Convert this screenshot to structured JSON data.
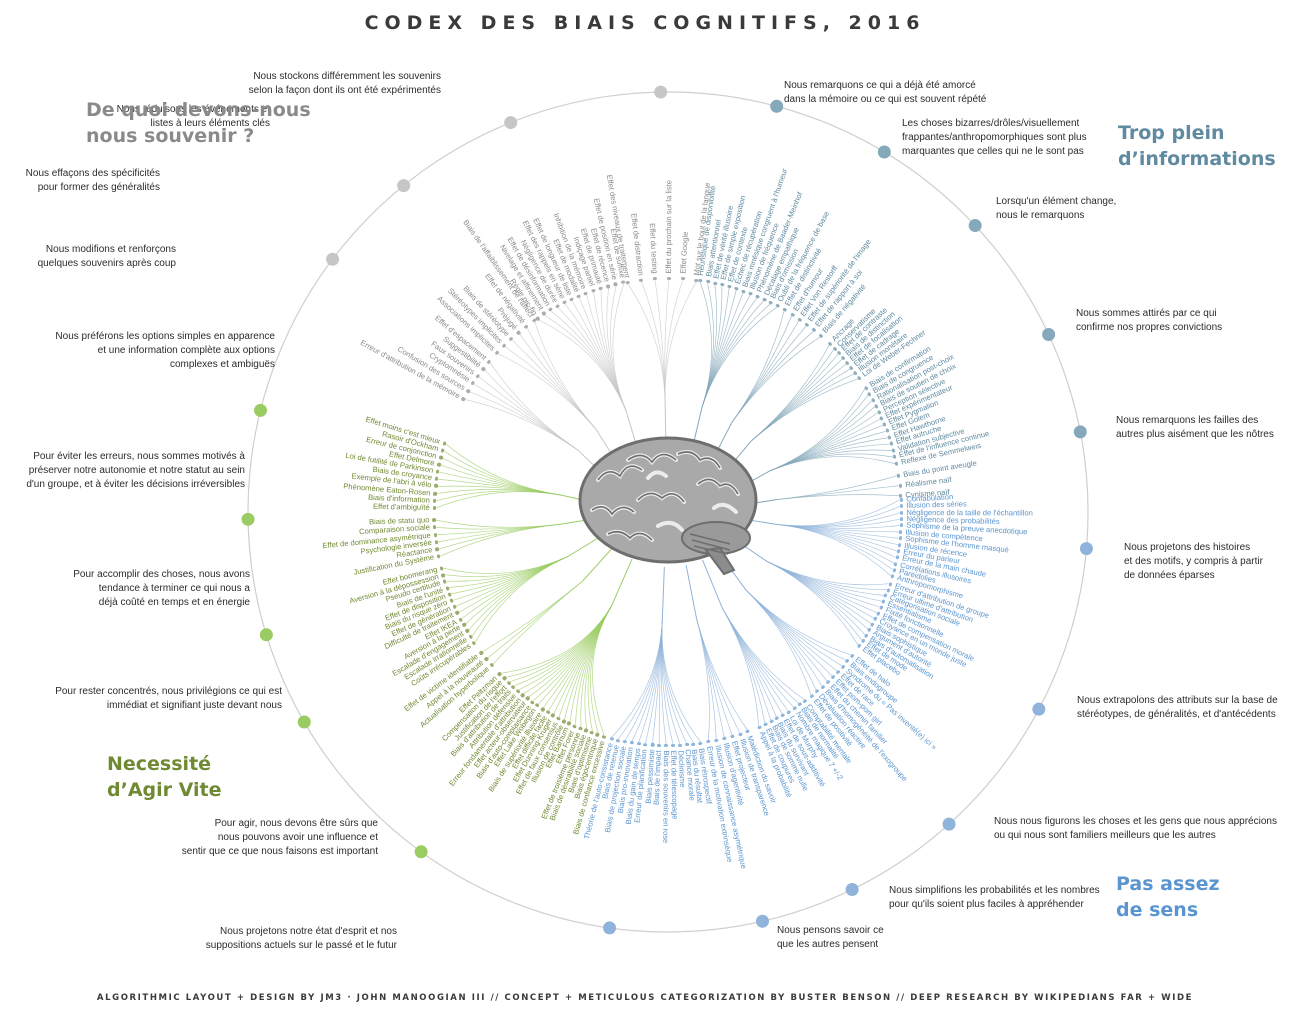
{
  "title": "CODEX DES BIAIS COGNITIFS, 2016",
  "footer": "ALGORITHMIC LAYOUT + DESIGN BY JM3 · JOHN MANOOGIAN III // CONCEPT + METICULOUS CATEGORIZATION BY BUSTER BENSON // DEEP RESEARCH BY WIKIPEDIANS FAR + WIDE",
  "center_icon": "brain-icon",
  "colors": {
    "memory": "#8a8a8a",
    "memory_dot": "#c6c6c6",
    "information": "#5f8aa0",
    "information_dot": "#86a8bb",
    "meaning": "#5b95cf",
    "meaning_dot": "#8fb3da",
    "action": "#6f8a32",
    "action_dot": "#9bcc63",
    "ring": "#cfcfcf"
  },
  "quadrants": {
    "memory": {
      "line1": "De quoi devons-nous",
      "line2": "nous souvenir ?"
    },
    "information": {
      "line1": "Trop plein",
      "line2": "d’informations"
    },
    "meaning": {
      "line1": "Pas assez",
      "line2": "de sens"
    },
    "action": {
      "line1": "Necessité",
      "line2": "d’Agir Vite"
    }
  },
  "categories": [
    {
      "id": "mem_store",
      "quadrant": "memory",
      "text": [
        "Nous stockons différemment les souvenirs",
        "selon la façon dont ils ont été expérimentés"
      ],
      "biases": [
        "Effet des niveaux de traitement",
        "Effet de distraction",
        "Effet du testing",
        "Effet du prochain sur la liste",
        "Effet Google",
        "Mot sur le bout de la langue"
      ]
    },
    {
      "id": "mem_reduce",
      "quadrant": "memory",
      "text": [
        "Nous réduisons les événements et",
        "listes à leurs éléments clés"
      ],
      "biases": [
        "Règle pic-fin",
        "Nivelage et affinement",
        "Effet de désinformation",
        "Négligence de durée",
        "Effet des rappels en série",
        "Effet de longueur de liste",
        "Effet de modalité",
        "Inhibition de la mémoire",
        "Indiçage partiel",
        "Effet de primauté",
        "Effet de récence",
        "Effet de position en série",
        "Effet de suffixe"
      ]
    },
    {
      "id": "mem_generalize",
      "quadrant": "memory",
      "text": [
        "Nous effaçons des spécificités",
        "pour former des généralités"
      ],
      "biases": [
        "Associations implicites",
        "Stéréotypes implicites",
        "Biais de stéréotype",
        "Préjugé",
        "Effet de négativité",
        "Biais de l'affaiblissement de l'affect"
      ]
    },
    {
      "id": "mem_edit",
      "quadrant": "memory",
      "text": [
        "Nous modifions et renforçons",
        "quelques souvenirs après coup"
      ],
      "biases": [
        "Erreur d'attribution de la mémoire",
        "Confusion des sources",
        "Cryptomnésie",
        "Faux souvenirs",
        "Suggestibilité",
        "Effet d'espacement"
      ]
    },
    {
      "id": "info_primed",
      "quadrant": "information",
      "text": [
        "Nous remarquons ce qui a déjà été amorcé",
        "dans la mémoire ou ce qui est souvent répété"
      ],
      "biases": [
        "Heuristique de disponibilité",
        "Biais attentionnel",
        "Effet de vérité illusoire",
        "Effet de simple exposition",
        "Effet de contexte",
        "Échec de récupération",
        "Biais mnésique congruent à l'humeur",
        "Illusion de fréquence",
        "Phénomène de Baader-Meinhof",
        "Décalage empathique",
        "Biais d'omission",
        "Oubli de la fréquence de base"
      ]
    },
    {
      "id": "info_bizarre",
      "quadrant": "information",
      "text": [
        "Les choses bizarres/drôles/visuellement",
        "frappantes/anthropomorphiques sont plus",
        "marquantes que celles qui ne le sont pas"
      ],
      "biases": [
        "Effet de distinctivité",
        "Effet d'humour",
        "Effet Von Restorff",
        "Effet de supériorité de l'image",
        "Effet de rapport à soi",
        "Biais de négativité"
      ]
    },
    {
      "id": "info_change",
      "quadrant": "information",
      "text": [
        "Lorsqu'un élément change,",
        "nous le remarquons"
      ],
      "biases": [
        "Ancrage",
        "Conservatisme",
        "Effet de contraste",
        "Biais de distinction",
        "Effet de focalisation",
        "Effet de cadrage",
        "Illusion monétaire",
        "Loi de Weber-Fechner"
      ]
    },
    {
      "id": "info_confirm",
      "quadrant": "information",
      "text": [
        "Nous sommes attirés par ce qui",
        "confirme nos propres convictions"
      ],
      "biases": [
        "Biais de confirmation",
        "Biais de congruence",
        "Rationalisation post-choix",
        "Biais de soutien de choix",
        "Perception sélective",
        "Effet expérimentateur",
        "Effet Pygmalion",
        "Effet Golem",
        "Effet Hawthorne",
        "Effet autruche",
        "Validation subjective",
        "Effet de l'influence continue",
        "Reflexe de Semmelweis"
      ]
    },
    {
      "id": "info_flaws",
      "quadrant": "information",
      "text": [
        "Nous remarquons les failles des",
        "autres plus aisément que les nôtres"
      ],
      "biases": [
        "Biais du point aveugle",
        "Réalisme naïf",
        "Cynisme naïf"
      ]
    },
    {
      "id": "mean_stories",
      "quadrant": "meaning",
      "text": [
        "Nous projetons des histoires",
        "et des motifs, y compris à partir",
        "de données éparses"
      ],
      "biases": [
        "Confabulation",
        "Illusion des séries",
        "Négligence de la taille de l'échantillon",
        "Négligence des probabilités",
        "Sophisme de la preuve anecdotique",
        "Illusion de compétence",
        "Sophisme de l'homme masqué",
        "Illusion de récence",
        "Erreur du parieur",
        "Erreur de la main chaude",
        "Corrélations illusoires",
        "Paréidolies",
        "Anthropomorphisme"
      ]
    },
    {
      "id": "mean_stereo",
      "quadrant": "meaning",
      "text": [
        "Nous extrapolons des attributs sur la base de",
        "stéréotypes, de généralités, et d'antécédents"
      ],
      "biases": [
        "Erreur d'attribution de groupe",
        "Erreur ultime d'attribution",
        "Catégorisation sociale",
        "Essentialisme",
        "Fixité fonctionnelle",
        "Effet de compensation morale",
        "Croyance en un monde juste",
        "Biais sophistique",
        "Argument d'autorité",
        "Biais d'automatisation",
        "Effet de mode",
        "Effet placebo"
      ]
    },
    {
      "id": "mean_familiar",
      "quadrant": "meaning",
      "text": [
        "Nous nous figurons les choses et les gens que nous apprécions",
        "ou qui nous sont familiers meilleurs que les autres"
      ],
      "biases": [
        "Effet de halo",
        "Biais endogroupe",
        "Syndrome du « Pas inventé(e) ici »",
        "Effet de race",
        "Effet pom-pom girl",
        "Effet du chemin familier",
        "Biais d'homogénéité de l'exogroupe",
        "Dévaluation réactive",
        "Effet de positivité"
      ]
    },
    {
      "id": "mean_prob",
      "quadrant": "meaning",
      "text": [
        "Nous simplifions les probabilités et les nombres",
        "pour qu'ils soient plus faciles à appréhender"
      ],
      "biases": [
        "Comptabilité mentale",
        "Biais de normalité",
        "Nombre magique 7 +/-2",
        "Loi de Murphy",
        "Effet de sous-additivité",
        "Biais du survivant",
        "Biais de somme nulle",
        "Effet de coupures",
        "Appel à la probabilité"
      ]
    },
    {
      "id": "mean_others",
      "quadrant": "meaning",
      "text": [
        "Nous pensons savoir ce",
        "que les autres pensent"
      ],
      "biases": [
        "Malédiction du savoir",
        "Illusion de transparence",
        "Effet projecteur",
        "Illusion d'agentivité",
        "Illusion de connaissance asymétrique",
        "Erreur de la motivation extrinsèque"
      ]
    },
    {
      "id": "mean_future",
      "quadrant": "meaning",
      "text": [
        "Nous projetons notre état d'esprit et nos",
        "suppositions actuels sur le passé et le futur"
      ],
      "biases": [
        "Biais rétrospectif",
        "Biais du résultat",
        "Chance morale",
        "Déclinisme",
        "Effet de télescopage",
        "Biais des souvenirs en rose",
        "Biais de l'impact",
        "Biais pessimiste",
        "Erreur de planification",
        "Biais du gain de temps",
        "Biais pro-innovation",
        "Biais de projection sociale",
        "Biais de retenue",
        "Théorie de l'auto-consistance"
      ]
    },
    {
      "id": "act_confident",
      "quadrant": "action",
      "text": [
        "Pour agir, nous devons être sûrs que",
        "nous pouvons avoir une influence et",
        "sentir que ce que nous faisons est important"
      ],
      "biases": [
        "Biais de confiance excessive",
        "Biais égocentrique",
        "Biais d'optimisme",
        "Biais de désirabilité sociale",
        "Effet de troisième personne",
        "Effet Forer",
        "Effet Barnum",
        "Illusion de contrôle",
        "Effet de faux consensus",
        "Effet Dunning-Kruger",
        "Effet difficile facile",
        "Biais de supériorité illusoire",
        "Effet Lake Wobegon",
        "Biais d'auto-complaisance",
        "Effet acteur-observateur",
        "Erreur fondamentale d'attribution",
        "Attribution défensive",
        "Biais d'attribution de traits",
        "Justification de l'effort",
        "Compensation du risque",
        "Effet Peltzman"
      ]
    },
    {
      "id": "act_immediate",
      "quadrant": "action",
      "text": [
        "Pour rester concentrés, nous privilégions ce qui est",
        "immédiat et signifiant juste devant nous"
      ],
      "biases": [
        "Actualisation hyperbolique",
        "Appel à la nouveauté",
        "Effet de victime identifiable"
      ]
    },
    {
      "id": "act_finish",
      "quadrant": "action",
      "text": [
        "Pour accomplir des choses, nous avons",
        "tendance à terminer ce qui nous a",
        "déjà coûté en temps et en énergie"
      ],
      "biases": [
        "Coûts irrécupérables",
        "Escalade irrationnelle",
        "Escalade d'engagement",
        "Aversion à la perte",
        "Effet IKEA",
        "Difficulté de traitement",
        "Effet de génération",
        "Biais du risque zéro",
        "Effet de disposition",
        "Biais de l'unité",
        "Pseudo certitude",
        "Aversion à la dépossession",
        "Effet boomerang"
      ]
    },
    {
      "id": "act_status",
      "quadrant": "action",
      "text": [
        "Pour éviter les erreurs, nous sommes motivés à",
        "préserver notre autonomie et notre statut au sein",
        "d'un groupe, et à éviter les décisions irréversibles"
      ],
      "biases": [
        "Justification du Système",
        "Réactance",
        "Psychologie inversée",
        "Effet de dominance asymétrique",
        "Comparaison sociale",
        "Biais de statu quo"
      ]
    },
    {
      "id": "act_simple",
      "quadrant": "action",
      "text": [
        "Nous préférons les options simples en apparence",
        "et une information complète aux options",
        "complexes et ambiguës"
      ],
      "biases": [
        "Effet d'ambiguïté",
        "Biais d'information",
        "Phénomène Eaton-Rosen",
        "Exemple de l'abri à vélo",
        "Biais de croyance",
        "Loi de futilité de Parkinson",
        "Effet Delmore",
        "Erreur de conjonction",
        "Rasoir d'Ockham",
        "Effet moins c'est mieux"
      ]
    }
  ]
}
